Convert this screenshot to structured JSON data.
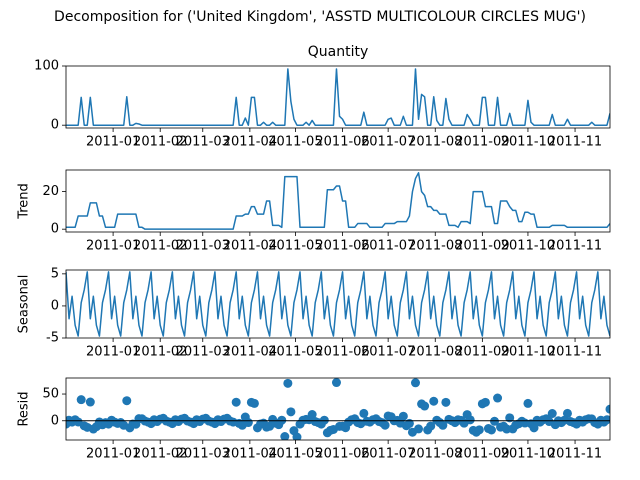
{
  "title": "Decomposition for ('United Kingdom', 'ASSTD MULTICOLOUR CIRCLES MUG')",
  "chart_data": {
    "type": "decomposition",
    "x": [
      "2010-12-01",
      "2010-12-03",
      "2010-12-05",
      "2010-12-07",
      "2010-12-09",
      "2010-12-11",
      "2010-12-13",
      "2010-12-15",
      "2010-12-17",
      "2010-12-19",
      "2010-12-21",
      "2010-12-23",
      "2010-12-25",
      "2010-12-27",
      "2010-12-29",
      "2010-12-31",
      "2011-01-02",
      "2011-01-04",
      "2011-01-06",
      "2011-01-08",
      "2011-01-10",
      "2011-01-12",
      "2011-01-14",
      "2011-01-16",
      "2011-01-18",
      "2011-01-20",
      "2011-01-22",
      "2011-01-24",
      "2011-01-26",
      "2011-01-28",
      "2011-01-30",
      "2011-02-01",
      "2011-02-03",
      "2011-02-05",
      "2011-02-07",
      "2011-02-09",
      "2011-02-11",
      "2011-02-13",
      "2011-02-15",
      "2011-02-17",
      "2011-02-19",
      "2011-02-21",
      "2011-02-23",
      "2011-02-25",
      "2011-02-27",
      "2011-03-01",
      "2011-03-03",
      "2011-03-05",
      "2011-03-07",
      "2011-03-09",
      "2011-03-11",
      "2011-03-13",
      "2011-03-15",
      "2011-03-17",
      "2011-03-19",
      "2011-03-21",
      "2011-03-23",
      "2011-03-25",
      "2011-03-27",
      "2011-03-29",
      "2011-03-31",
      "2011-04-02",
      "2011-04-04",
      "2011-04-06",
      "2011-04-08",
      "2011-04-10",
      "2011-04-12",
      "2011-04-14",
      "2011-04-16",
      "2011-04-18",
      "2011-04-20",
      "2011-04-22",
      "2011-04-24",
      "2011-04-26",
      "2011-04-28",
      "2011-04-30",
      "2011-05-02",
      "2011-05-04",
      "2011-05-06",
      "2011-05-08",
      "2011-05-10",
      "2011-05-12",
      "2011-05-14",
      "2011-05-16",
      "2011-05-18",
      "2011-05-20",
      "2011-05-22",
      "2011-05-24",
      "2011-05-26",
      "2011-05-28",
      "2011-05-30",
      "2011-06-01",
      "2011-06-03",
      "2011-06-05",
      "2011-06-07",
      "2011-06-09",
      "2011-06-11",
      "2011-06-13",
      "2011-06-15",
      "2011-06-17",
      "2011-06-19",
      "2011-06-21",
      "2011-06-23",
      "2011-06-25",
      "2011-06-27",
      "2011-06-29",
      "2011-07-01",
      "2011-07-03",
      "2011-07-05",
      "2011-07-07",
      "2011-07-09",
      "2011-07-11",
      "2011-07-13",
      "2011-07-15",
      "2011-07-17",
      "2011-07-19",
      "2011-07-21",
      "2011-07-23",
      "2011-07-25",
      "2011-07-27",
      "2011-07-29",
      "2011-07-31",
      "2011-08-02",
      "2011-08-04",
      "2011-08-06",
      "2011-08-08",
      "2011-08-10",
      "2011-08-12",
      "2011-08-14",
      "2011-08-16",
      "2011-08-18",
      "2011-08-20",
      "2011-08-22",
      "2011-08-24",
      "2011-08-26",
      "2011-08-28",
      "2011-08-30",
      "2011-09-01",
      "2011-09-03",
      "2011-09-05",
      "2011-09-07",
      "2011-09-09",
      "2011-09-11",
      "2011-09-13",
      "2011-09-15",
      "2011-09-17",
      "2011-09-19",
      "2011-09-21",
      "2011-09-23",
      "2011-09-25",
      "2011-09-27",
      "2011-09-29",
      "2011-10-01",
      "2011-10-03",
      "2011-10-05",
      "2011-10-07",
      "2011-10-09",
      "2011-10-11",
      "2011-10-13",
      "2011-10-15",
      "2011-10-17",
      "2011-10-19",
      "2011-10-21",
      "2011-10-23",
      "2011-10-25",
      "2011-10-27",
      "2011-10-29",
      "2011-10-31",
      "2011-11-02",
      "2011-11-04",
      "2011-11-06",
      "2011-11-08",
      "2011-11-10",
      "2011-11-12",
      "2011-11-14",
      "2011-11-16",
      "2011-11-18",
      "2011-11-20",
      "2011-11-22",
      "2011-11-24"
    ],
    "xlim": [
      "2010-12-01",
      "2011-11-24"
    ],
    "xticks": [
      {
        "value": "2011-01-01",
        "label": "2011-01"
      },
      {
        "value": "2011-02-01",
        "label": "2011-02"
      },
      {
        "value": "2011-03-01",
        "label": "2011-03"
      },
      {
        "value": "2011-04-01",
        "label": "2011-04"
      },
      {
        "value": "2011-05-01",
        "label": "2011-05"
      },
      {
        "value": "2011-06-01",
        "label": "2011-06"
      },
      {
        "value": "2011-07-01",
        "label": "2011-07"
      },
      {
        "value": "2011-08-01",
        "label": "2011-08"
      },
      {
        "value": "2011-09-01",
        "label": "2011-09"
      },
      {
        "value": "2011-10-01",
        "label": "2011-10"
      },
      {
        "value": "2011-11-01",
        "label": "2011-11"
      }
    ],
    "panels": [
      {
        "type": "line",
        "title": "Quantity",
        "color": "#1f77b4",
        "ylim": [
          -4.75,
          100
        ],
        "yticks": [
          0,
          100
        ],
        "values": [
          0,
          0,
          0,
          0,
          0,
          47,
          0,
          0,
          47,
          0,
          0,
          0,
          0,
          0,
          0,
          0,
          0,
          0,
          0,
          0,
          48,
          0,
          0,
          3,
          2,
          0,
          0,
          0,
          0,
          0,
          0,
          0,
          0,
          0,
          0,
          0,
          0,
          0,
          0,
          0,
          0,
          0,
          0,
          0,
          0,
          0,
          0,
          0,
          0,
          0,
          0,
          0,
          0,
          0,
          0,
          0,
          47,
          0,
          0,
          12,
          0,
          47,
          47,
          0,
          0,
          5,
          0,
          0,
          5,
          0,
          0,
          0,
          0,
          95,
          40,
          10,
          0,
          0,
          0,
          5,
          0,
          8,
          0,
          0,
          0,
          0,
          0,
          0,
          0,
          95,
          15,
          10,
          0,
          0,
          0,
          0,
          0,
          0,
          22,
          0,
          0,
          0,
          0,
          0,
          0,
          0,
          10,
          12,
          0,
          0,
          0,
          15,
          0,
          0,
          0,
          95,
          10,
          52,
          48,
          0,
          0,
          48,
          8,
          0,
          0,
          45,
          10,
          0,
          0,
          0,
          0,
          0,
          18,
          10,
          0,
          0,
          0,
          47,
          47,
          0,
          0,
          0,
          47,
          0,
          0,
          0,
          20,
          0,
          0,
          0,
          0,
          0,
          42,
          5,
          0,
          0,
          0,
          0,
          0,
          0,
          18,
          0,
          0,
          0,
          0,
          10,
          0,
          0,
          0,
          0,
          0,
          0,
          0,
          5,
          0,
          0,
          0,
          0,
          0,
          20
        ]
      },
      {
        "type": "line",
        "ylabel": "Trend",
        "color": "#1f77b4",
        "ylim": [
          -1.5,
          31.5
        ],
        "yticks": [
          0,
          20
        ],
        "values": [
          1,
          1,
          1,
          1,
          7,
          7,
          7,
          7,
          14,
          14,
          14,
          7,
          7,
          1,
          1,
          1,
          1,
          8,
          8,
          8,
          8,
          8,
          8,
          8,
          1,
          1,
          0,
          0,
          0,
          0,
          0,
          0,
          0,
          0,
          0,
          0,
          0,
          0,
          0,
          0,
          0,
          0,
          0,
          0,
          0,
          0,
          0,
          0,
          0,
          0,
          0,
          0,
          0,
          0,
          0,
          0,
          7,
          7,
          7,
          8,
          8,
          12,
          12,
          8,
          8,
          8,
          15,
          15,
          2,
          2,
          2,
          1,
          28,
          28,
          28,
          28,
          28,
          1,
          1,
          1,
          1,
          1,
          1,
          1,
          1,
          1,
          21,
          21,
          21,
          23,
          23,
          15,
          15,
          1,
          1,
          1,
          3,
          3,
          3,
          3,
          1,
          1,
          1,
          1,
          1,
          3,
          3,
          3,
          3,
          4,
          4,
          4,
          4,
          7,
          20,
          27,
          30,
          20,
          18,
          12,
          12,
          10,
          10,
          8,
          8,
          8,
          2,
          2,
          2,
          1,
          4,
          4,
          4,
          3,
          20,
          20,
          20,
          20,
          12,
          12,
          12,
          3,
          3,
          15,
          15,
          15,
          12,
          10,
          10,
          4,
          4,
          9,
          9,
          8,
          8,
          1,
          1,
          1,
          1,
          1,
          2,
          2,
          2,
          2,
          2,
          1,
          1,
          1,
          1,
          1,
          1,
          1,
          1,
          1,
          1,
          1,
          1,
          1,
          1,
          3
        ]
      },
      {
        "type": "line",
        "ylabel": "Seasonal",
        "color": "#1f77b4",
        "ylim": [
          -5,
          5.6
        ],
        "yticks": [
          -5,
          0,
          5
        ],
        "values": [
          5.3,
          -2,
          1.5,
          -3,
          -4.7,
          0.5,
          2.5,
          5.3,
          -2,
          1.5,
          -3,
          -4.7,
          0.5,
          2.5,
          5.3,
          -2,
          1.5,
          -3,
          -4.7,
          0.5,
          2.5,
          5.3,
          -2,
          1.5,
          -3,
          -4.7,
          0.5,
          2.5,
          5.3,
          -2,
          1.5,
          -3,
          -4.7,
          0.5,
          2.5,
          5.3,
          -2,
          1.5,
          -3,
          -4.7,
          0.5,
          2.5,
          5.3,
          -2,
          1.5,
          -3,
          -4.7,
          0.5,
          2.5,
          5.3,
          -2,
          1.5,
          -3,
          -4.7,
          0.5,
          2.5,
          5.3,
          -2,
          1.5,
          -3,
          -4.7,
          0.5,
          2.5,
          5.3,
          -2,
          1.5,
          -3,
          -4.7,
          0.5,
          2.5,
          5.3,
          -2,
          1.5,
          -3,
          -4.7,
          0.5,
          2.5,
          5.3,
          -2,
          1.5,
          -3,
          -4.7,
          0.5,
          2.5,
          5.3,
          -2,
          1.5,
          -3,
          -4.7,
          0.5,
          2.5,
          5.3,
          -2,
          1.5,
          -3,
          -4.7,
          0.5,
          2.5,
          5.3,
          -2,
          1.5,
          -3,
          -4.7,
          0.5,
          2.5,
          5.3,
          -2,
          1.5,
          -3,
          -4.7,
          0.5,
          2.5,
          5.3,
          -2,
          1.5,
          -3,
          -4.7,
          0.5,
          2.5,
          5.3,
          -2,
          1.5,
          -3,
          -4.7,
          0.5,
          2.5,
          5.3,
          -2,
          1.5,
          -3,
          -4.7,
          0.5,
          2.5,
          5.3,
          -2,
          1.5,
          -3,
          -4.7,
          0.5,
          2.5,
          5.3,
          -2,
          1.5,
          -3,
          -4.7,
          0.5,
          2.5,
          5.3,
          -2,
          1.5,
          -3,
          -4.7,
          0.5,
          2.5,
          5.3,
          -2,
          1.5,
          -3,
          -4.7,
          0.5,
          2.5,
          5.3,
          -2,
          1.5,
          -3,
          -4.7,
          0.5,
          2.5,
          5.3,
          -2,
          1.5,
          -3,
          -4.7,
          0.5,
          2.5,
          5.3,
          -2,
          1.5,
          -3,
          -4.7
        ]
      },
      {
        "type": "scatter",
        "ylabel": "Resid",
        "color": "#1f77b4",
        "zero_line": true,
        "ylim": [
          -36,
          80
        ],
        "yticks": [
          0,
          50
        ],
        "values": [
          -6.3,
          1,
          -2.5,
          2,
          -2.3,
          39.5,
          -9.5,
          -12.3,
          35,
          -15.5,
          -11,
          -2.3,
          -7.5,
          -3.5,
          -6.3,
          1,
          -2.5,
          -5,
          -3.3,
          -8.5,
          37.5,
          -13.3,
          -6,
          -6.5,
          4,
          3.7,
          -0.5,
          -2.5,
          -5.3,
          2,
          -1.5,
          3,
          4.7,
          -0.5,
          -2.5,
          -5.3,
          2,
          -1.5,
          3,
          4.7,
          -0.5,
          -2.5,
          -5.3,
          2,
          -1.5,
          3,
          4.7,
          -0.5,
          -2.5,
          -5.3,
          2,
          -1.5,
          3,
          4.7,
          -0.5,
          -2.5,
          34.7,
          -5,
          -8.5,
          7,
          -3.3,
          34.5,
          32.5,
          -13.3,
          -6,
          -4.5,
          -12,
          -10.3,
          2.5,
          -4.5,
          -7.3,
          1,
          -29.5,
          70,
          16.7,
          -18.5,
          -30.5,
          -6.3,
          1,
          2.5,
          2,
          11.7,
          -1.5,
          -3.5,
          -6.3,
          1,
          -22.5,
          -18,
          -16.3,
          71.5,
          -10.5,
          -10.3,
          -13,
          -2.5,
          2,
          3.7,
          -3.5,
          -5.5,
          13.7,
          -1,
          -2.5,
          2,
          3.7,
          -1.5,
          -3.5,
          -8.3,
          9,
          7.5,
          0,
          0.7,
          -4.5,
          8.5,
          -9.3,
          -5,
          -21.5,
          71,
          -15.3,
          31.5,
          27.5,
          -17.3,
          -10,
          36.5,
          1,
          -3.3,
          -8.5,
          34.5,
          2.7,
          0,
          -3.5,
          2,
          0.7,
          -4.5,
          11.5,
          1.7,
          -18,
          -21.5,
          -17,
          31.7,
          34.5,
          -14.5,
          -17.3,
          -1,
          42.5,
          -12,
          -10.3,
          -15.5,
          5.5,
          -15.3,
          -8,
          -5.5,
          -1,
          -4.3,
          32.5,
          -5.5,
          -13.3,
          1,
          -2.5,
          2,
          3.7,
          -1.5,
          13.5,
          -7.3,
          0,
          -3.5,
          1,
          13.7,
          -1.5,
          -3.5,
          -6.3,
          1,
          -2.5,
          2,
          3.7,
          3.5,
          -3.5,
          -6.3,
          1,
          -2.5,
          2,
          21.7
        ]
      }
    ]
  }
}
